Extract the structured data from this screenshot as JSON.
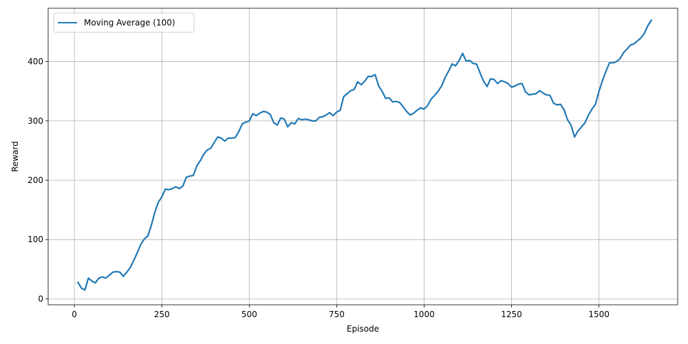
{
  "chart_data": {
    "type": "line",
    "xlabel": "Episode",
    "ylabel": "Reward",
    "xlim": [
      -75,
      1725
    ],
    "ylim": [
      -10,
      490
    ],
    "xticks": [
      0,
      250,
      500,
      750,
      1000,
      1250,
      1500
    ],
    "yticks": [
      0,
      100,
      200,
      300,
      400
    ],
    "grid": true,
    "legend_position": "top-left",
    "series": [
      {
        "name": "Moving Average (100)",
        "color": "#1f77b4",
        "x": [
          10,
          20,
          30,
          40,
          50,
          60,
          70,
          80,
          90,
          100,
          110,
          120,
          130,
          140,
          150,
          160,
          170,
          180,
          190,
          200,
          210,
          220,
          230,
          240,
          250,
          260,
          270,
          280,
          290,
          300,
          310,
          320,
          330,
          340,
          350,
          360,
          370,
          380,
          390,
          400,
          410,
          420,
          430,
          440,
          450,
          460,
          470,
          480,
          490,
          500,
          510,
          520,
          530,
          540,
          550,
          560,
          570,
          580,
          590,
          600,
          610,
          620,
          630,
          640,
          650,
          660,
          670,
          680,
          690,
          700,
          710,
          720,
          730,
          740,
          750,
          760,
          770,
          780,
          790,
          800,
          810,
          820,
          830,
          840,
          850,
          860,
          870,
          880,
          890,
          900,
          910,
          920,
          930,
          940,
          950,
          960,
          970,
          980,
          990,
          1000,
          1010,
          1020,
          1030,
          1040,
          1050,
          1060,
          1070,
          1080,
          1090,
          1100,
          1110,
          1120,
          1130,
          1140,
          1150,
          1160,
          1170,
          1180,
          1190,
          1200,
          1210,
          1220,
          1230,
          1240,
          1250,
          1260,
          1270,
          1280,
          1290,
          1300,
          1310,
          1320,
          1330,
          1340,
          1350,
          1360,
          1370,
          1380,
          1390,
          1400,
          1410,
          1420,
          1430,
          1440,
          1450,
          1460,
          1470,
          1480,
          1490,
          1500,
          1510,
          1520,
          1530,
          1540,
          1550,
          1560,
          1570,
          1580,
          1590,
          1600,
          1610,
          1620,
          1630,
          1640,
          1650
        ],
        "y": [
          28,
          18,
          15,
          35,
          30,
          27,
          35,
          37,
          35,
          40,
          45,
          46,
          45,
          38,
          45,
          53,
          65,
          78,
          92,
          101,
          106,
          124,
          146,
          163,
          172,
          185,
          184,
          186,
          189,
          186,
          190,
          205,
          207,
          208,
          224,
          233,
          244,
          251,
          254,
          264,
          273,
          271,
          266,
          271,
          271,
          272,
          282,
          295,
          298,
          300,
          312,
          309,
          313,
          316,
          315,
          311,
          297,
          293,
          305,
          303,
          290,
          297,
          295,
          304,
          302,
          303,
          302,
          300,
          300,
          306,
          307,
          310,
          314,
          309,
          315,
          318,
          341,
          346,
          351,
          353,
          366,
          361,
          367,
          375,
          375,
          378,
          359,
          350,
          338,
          339,
          332,
          333,
          331,
          324,
          316,
          310,
          313,
          318,
          322,
          320,
          326,
          337,
          343,
          350,
          359,
          373,
          384,
          396,
          393,
          402,
          414,
          401,
          402,
          397,
          396,
          381,
          367,
          358,
          371,
          370,
          363,
          368,
          366,
          363,
          357,
          359,
          362,
          363,
          349,
          344,
          345,
          346,
          351,
          347,
          344,
          343,
          330,
          327,
          328,
          319,
          302,
          293,
          273,
          283,
          290,
          297,
          310,
          320,
          328,
          350,
          368,
          384,
          398,
          398,
          400,
          405,
          415,
          421,
          428,
          430,
          435,
          440,
          448,
          461,
          470
        ]
      }
    ]
  }
}
